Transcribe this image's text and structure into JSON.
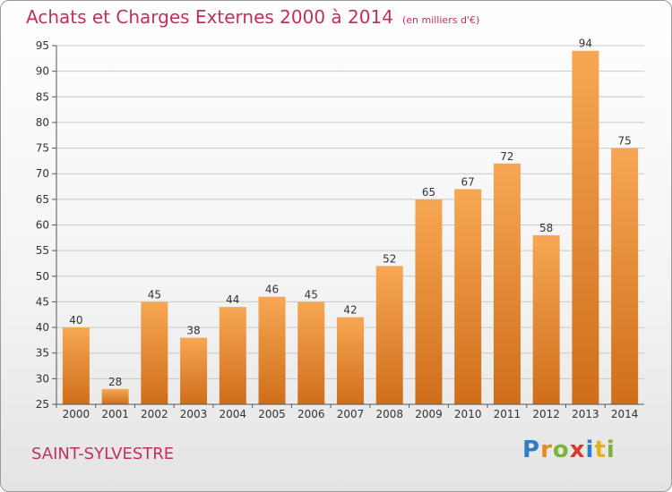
{
  "header": {
    "title": "Achats et Charges Externes 2000 à 2014",
    "subtitle": "(en milliers d'€)"
  },
  "footer": {
    "commune": "SAINT-SYLVESTRE",
    "logo": {
      "letters": [
        "P",
        "r",
        "o",
        "x",
        "i",
        "t",
        "i"
      ],
      "colors": [
        "#2f7fc8",
        "#e58a1f",
        "#7cb33a",
        "#d63b2f",
        "#2f7fc8",
        "#e5b01f",
        "#7cb33a"
      ]
    }
  },
  "chart_data": {
    "type": "bar",
    "categories": [
      "2000",
      "2001",
      "2002",
      "2003",
      "2004",
      "2005",
      "2006",
      "2007",
      "2008",
      "2009",
      "2010",
      "2011",
      "2012",
      "2013",
      "2014"
    ],
    "values": [
      40,
      28,
      45,
      38,
      44,
      46,
      45,
      42,
      52,
      65,
      67,
      72,
      58,
      94,
      75
    ],
    "title": "Achats et Charges Externes 2000 à 2014",
    "ylim": [
      25,
      95
    ],
    "yticks": [
      25,
      30,
      35,
      40,
      45,
      50,
      55,
      60,
      65,
      70,
      75,
      80,
      85,
      90,
      95
    ],
    "grid": true,
    "bar_color_top": "#f7a753",
    "bar_color_bottom": "#cf6e1a"
  }
}
